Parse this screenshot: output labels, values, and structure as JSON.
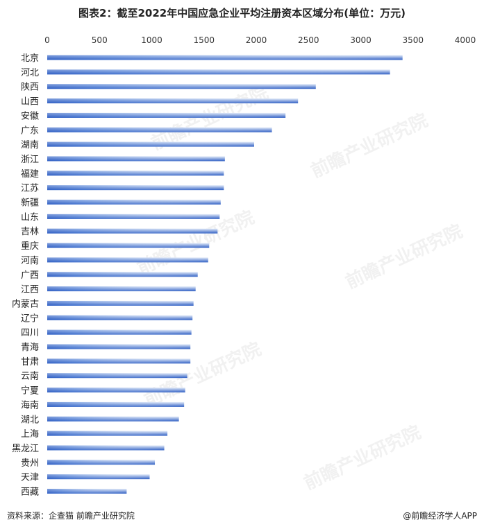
{
  "title": "图表2：截至2022年中国应急企业平均注册资本区域分布(单位：万元)",
  "footer": {
    "source": "资料来源：企查猫 前瞻产业研究院",
    "credit": "@前瞻经济学人APP"
  },
  "watermark": "前瞻产业研究院",
  "colors": {
    "bar_dark": "#2f5fc4",
    "bar_light": "#e4ecf9"
  },
  "chart_data": {
    "type": "bar",
    "orientation": "horizontal",
    "xlim": [
      0,
      4000
    ],
    "xticks": [
      0,
      500,
      1000,
      1500,
      2000,
      2500,
      3000,
      3500,
      4000
    ],
    "axis_position": "top",
    "grid": false,
    "categories": [
      "北京",
      "河北",
      "陕西",
      "山西",
      "安徽",
      "广东",
      "湖南",
      "浙江",
      "福建",
      "江苏",
      "新疆",
      "山东",
      "吉林",
      "重庆",
      "河南",
      "广西",
      "江西",
      "内蒙古",
      "辽宁",
      "四川",
      "青海",
      "甘肃",
      "云南",
      "宁夏",
      "海南",
      "湖北",
      "上海",
      "黑龙江",
      "贵州",
      "天津",
      "西藏"
    ],
    "values": [
      3400,
      3280,
      2570,
      2400,
      2280,
      2150,
      1980,
      1700,
      1690,
      1690,
      1660,
      1650,
      1630,
      1550,
      1540,
      1440,
      1420,
      1400,
      1390,
      1380,
      1370,
      1370,
      1340,
      1320,
      1310,
      1260,
      1150,
      1120,
      1030,
      980,
      760
    ]
  }
}
